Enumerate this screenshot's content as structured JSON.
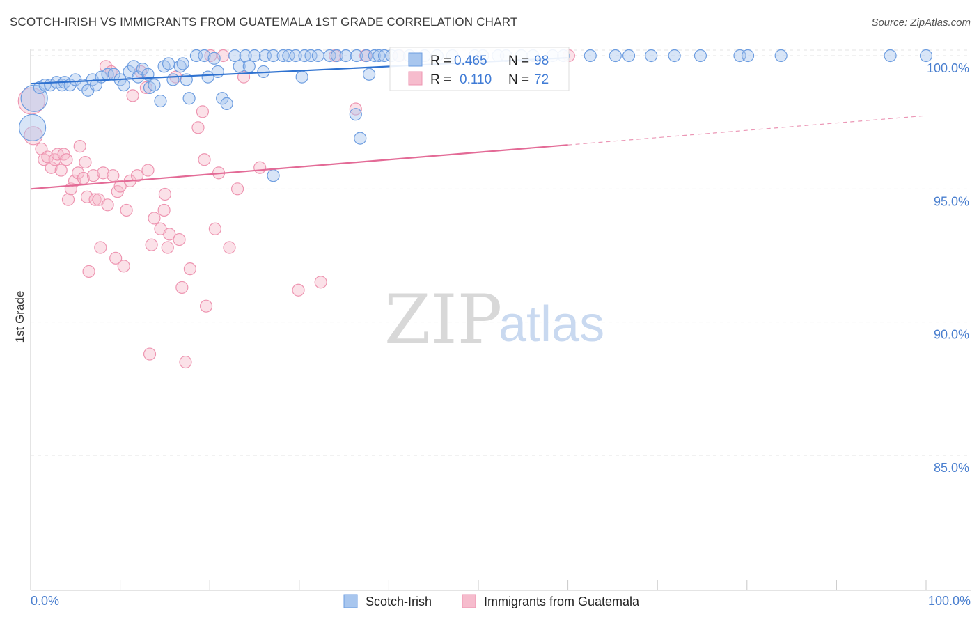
{
  "header": {
    "title": "SCOTCH-IRISH VS IMMIGRANTS FROM GUATEMALA 1ST GRADE CORRELATION CHART",
    "source": "Source: ZipAtlas.com"
  },
  "watermark": {
    "zip": "ZIP",
    "atlas": "atlas"
  },
  "legend_box": {
    "rows": [
      {
        "r_label": "R =",
        "r_value": "0.465",
        "n_label": "N =",
        "n_value": "98"
      },
      {
        "r_label": "R =",
        "r_value": "0.110",
        "n_label": "N =",
        "n_value": "72"
      }
    ]
  },
  "colors": {
    "blue_fill": "#a8c6ee",
    "blue_stroke": "#6d9de0",
    "blue_line": "#2f72d0",
    "pink_fill": "#f6bccd",
    "pink_stroke": "#ee95b1",
    "pink_line": "#e36a96",
    "grid": "#e3e3e3",
    "axis_text": "#4a7fcf"
  },
  "chart_data": {
    "type": "scatter",
    "title": "SCOTCH-IRISH VS IMMIGRANTS FROM GUATEMALA 1ST GRADE CORRELATION CHART",
    "ylabel": "1st Grade",
    "xlabel": "",
    "xlim": [
      0,
      100
    ],
    "ylim": [
      80.5,
      100.8
    ],
    "x_ticks": [
      "0.0%",
      "100.0%"
    ],
    "y_ticks": [
      {
        "value": 85,
        "label": "85.0%"
      },
      {
        "value": 90,
        "label": "90.0%"
      },
      {
        "value": 95,
        "label": "95.0%"
      },
      {
        "value": 100,
        "label": "100.0%"
      }
    ],
    "grid": true,
    "legend_position": "bottom-center",
    "series": [
      {
        "name": "Scotch-Irish",
        "color": "#a8c6ee",
        "R": 0.465,
        "N": 98,
        "trend": {
          "x": [
            0,
            60
          ],
          "y": [
            98.95,
            99.92
          ],
          "dashed_to": null
        },
        "points": [
          {
            "x": 0.2,
            "y": 97.3,
            "s": 3
          },
          {
            "x": 0.4,
            "y": 98.4,
            "s": 3
          },
          {
            "x": 1.0,
            "y": 98.8
          },
          {
            "x": 1.6,
            "y": 98.9
          },
          {
            "x": 2.2,
            "y": 98.9
          },
          {
            "x": 2.9,
            "y": 99.0
          },
          {
            "x": 3.5,
            "y": 98.9
          },
          {
            "x": 3.8,
            "y": 99.0
          },
          {
            "x": 4.4,
            "y": 98.9
          },
          {
            "x": 5.0,
            "y": 99.1
          },
          {
            "x": 5.8,
            "y": 98.9
          },
          {
            "x": 6.4,
            "y": 98.7
          },
          {
            "x": 6.9,
            "y": 99.1
          },
          {
            "x": 7.3,
            "y": 98.9
          },
          {
            "x": 7.9,
            "y": 99.2
          },
          {
            "x": 8.6,
            "y": 99.3
          },
          {
            "x": 9.3,
            "y": 99.3
          },
          {
            "x": 10.0,
            "y": 99.1
          },
          {
            "x": 10.4,
            "y": 98.9
          },
          {
            "x": 11.0,
            "y": 99.4
          },
          {
            "x": 11.5,
            "y": 99.6
          },
          {
            "x": 12.0,
            "y": 99.2
          },
          {
            "x": 12.5,
            "y": 99.5
          },
          {
            "x": 13.1,
            "y": 99.3
          },
          {
            "x": 13.3,
            "y": 98.8
          },
          {
            "x": 13.8,
            "y": 98.9
          },
          {
            "x": 14.5,
            "y": 98.3
          },
          {
            "x": 14.9,
            "y": 99.6
          },
          {
            "x": 15.4,
            "y": 99.7
          },
          {
            "x": 15.9,
            "y": 99.1
          },
          {
            "x": 16.7,
            "y": 99.6
          },
          {
            "x": 17.0,
            "y": 99.7
          },
          {
            "x": 17.4,
            "y": 99.1
          },
          {
            "x": 17.7,
            "y": 98.4
          },
          {
            "x": 18.5,
            "y": 100.0
          },
          {
            "x": 19.4,
            "y": 100.0
          },
          {
            "x": 19.8,
            "y": 99.2
          },
          {
            "x": 20.5,
            "y": 99.9
          },
          {
            "x": 20.9,
            "y": 99.4
          },
          {
            "x": 21.4,
            "y": 98.4
          },
          {
            "x": 21.9,
            "y": 98.2
          },
          {
            "x": 22.8,
            "y": 100.0
          },
          {
            "x": 23.3,
            "y": 99.6
          },
          {
            "x": 24.0,
            "y": 100.0
          },
          {
            "x": 24.4,
            "y": 99.6
          },
          {
            "x": 25.0,
            "y": 100.0
          },
          {
            "x": 26.2,
            "y": 100.0
          },
          {
            "x": 26.0,
            "y": 99.4
          },
          {
            "x": 27.1,
            "y": 100.0
          },
          {
            "x": 28.2,
            "y": 100.0
          },
          {
            "x": 28.8,
            "y": 100.0
          },
          {
            "x": 29.6,
            "y": 100.0
          },
          {
            "x": 30.3,
            "y": 99.2
          },
          {
            "x": 30.6,
            "y": 100.0
          },
          {
            "x": 31.3,
            "y": 100.0
          },
          {
            "x": 32.1,
            "y": 100.0
          },
          {
            "x": 33.4,
            "y": 100.0
          },
          {
            "x": 34.2,
            "y": 100.0
          },
          {
            "x": 35.2,
            "y": 100.0
          },
          {
            "x": 36.4,
            "y": 100.0
          },
          {
            "x": 37.5,
            "y": 100.0
          },
          {
            "x": 37.8,
            "y": 99.3
          },
          {
            "x": 38.4,
            "y": 100.0
          },
          {
            "x": 38.9,
            "y": 100.0
          },
          {
            "x": 39.5,
            "y": 100.0
          },
          {
            "x": 40.3,
            "y": 100.0
          },
          {
            "x": 41.1,
            "y": 100.0
          },
          {
            "x": 42.3,
            "y": 100.0
          },
          {
            "x": 44.0,
            "y": 100.0
          },
          {
            "x": 45.4,
            "y": 100.0
          },
          {
            "x": 47.1,
            "y": 100.0
          },
          {
            "x": 49.6,
            "y": 100.0
          },
          {
            "x": 50.5,
            "y": 100.0
          },
          {
            "x": 52.2,
            "y": 100.0
          },
          {
            "x": 53.1,
            "y": 100.0
          },
          {
            "x": 54.8,
            "y": 100.0
          },
          {
            "x": 56.1,
            "y": 100.0
          },
          {
            "x": 58.3,
            "y": 100.0
          },
          {
            "x": 59.5,
            "y": 100.0
          },
          {
            "x": 62.5,
            "y": 100.0
          },
          {
            "x": 65.3,
            "y": 100.0
          },
          {
            "x": 66.8,
            "y": 100.0
          },
          {
            "x": 69.3,
            "y": 100.0
          },
          {
            "x": 71.9,
            "y": 100.0
          },
          {
            "x": 74.8,
            "y": 100.0
          },
          {
            "x": 79.2,
            "y": 100.0
          },
          {
            "x": 80.1,
            "y": 100.0
          },
          {
            "x": 83.8,
            "y": 100.0
          },
          {
            "x": 96.0,
            "y": 100.0
          },
          {
            "x": 100.0,
            "y": 100.0
          },
          {
            "x": 36.3,
            "y": 97.8
          },
          {
            "x": 36.8,
            "y": 96.9
          },
          {
            "x": 27.1,
            "y": 95.5
          }
        ]
      },
      {
        "name": "Immigrants from Guatemala",
        "color": "#f6bccd",
        "R": 0.11,
        "N": 72,
        "trend": {
          "x": [
            0,
            60
          ],
          "y": [
            95.0,
            96.65
          ],
          "dashed_to": [
            100,
            97.75
          ]
        },
        "points": [
          {
            "x": 0.1,
            "y": 98.3,
            "s": 3
          },
          {
            "x": 0.3,
            "y": 97.0,
            "s": 2
          },
          {
            "x": 1.2,
            "y": 96.5
          },
          {
            "x": 1.5,
            "y": 96.1
          },
          {
            "x": 1.9,
            "y": 96.2
          },
          {
            "x": 2.3,
            "y": 95.8
          },
          {
            "x": 2.7,
            "y": 96.1
          },
          {
            "x": 3.0,
            "y": 96.3
          },
          {
            "x": 3.4,
            "y": 95.7
          },
          {
            "x": 3.7,
            "y": 96.3
          },
          {
            "x": 4.0,
            "y": 96.1
          },
          {
            "x": 4.2,
            "y": 94.6
          },
          {
            "x": 4.5,
            "y": 95.0
          },
          {
            "x": 4.9,
            "y": 95.3
          },
          {
            "x": 5.3,
            "y": 95.6
          },
          {
            "x": 5.5,
            "y": 96.6
          },
          {
            "x": 5.9,
            "y": 95.4
          },
          {
            "x": 6.1,
            "y": 96.0
          },
          {
            "x": 6.3,
            "y": 94.7
          },
          {
            "x": 6.5,
            "y": 91.9
          },
          {
            "x": 7.0,
            "y": 95.5
          },
          {
            "x": 7.2,
            "y": 94.6
          },
          {
            "x": 7.6,
            "y": 94.6
          },
          {
            "x": 7.8,
            "y": 92.8
          },
          {
            "x": 8.1,
            "y": 95.6
          },
          {
            "x": 8.4,
            "y": 99.6
          },
          {
            "x": 8.6,
            "y": 94.4
          },
          {
            "x": 9.0,
            "y": 99.4
          },
          {
            "x": 9.2,
            "y": 95.5
          },
          {
            "x": 9.5,
            "y": 92.4
          },
          {
            "x": 9.7,
            "y": 94.9
          },
          {
            "x": 10.0,
            "y": 95.1
          },
          {
            "x": 10.4,
            "y": 92.1
          },
          {
            "x": 10.7,
            "y": 94.2
          },
          {
            "x": 11.1,
            "y": 95.3
          },
          {
            "x": 11.4,
            "y": 98.5
          },
          {
            "x": 11.9,
            "y": 95.5
          },
          {
            "x": 12.3,
            "y": 99.4
          },
          {
            "x": 12.9,
            "y": 98.8
          },
          {
            "x": 13.1,
            "y": 95.7
          },
          {
            "x": 13.5,
            "y": 92.9
          },
          {
            "x": 13.8,
            "y": 93.9
          },
          {
            "x": 13.3,
            "y": 88.8
          },
          {
            "x": 14.5,
            "y": 93.5
          },
          {
            "x": 14.9,
            "y": 94.2
          },
          {
            "x": 15.0,
            "y": 94.8
          },
          {
            "x": 15.3,
            "y": 92.8
          },
          {
            "x": 15.5,
            "y": 93.3
          },
          {
            "x": 16.2,
            "y": 99.2
          },
          {
            "x": 16.6,
            "y": 93.1
          },
          {
            "x": 16.9,
            "y": 91.3
          },
          {
            "x": 17.3,
            "y": 88.5
          },
          {
            "x": 17.8,
            "y": 92.0
          },
          {
            "x": 18.7,
            "y": 97.3
          },
          {
            "x": 19.2,
            "y": 97.9
          },
          {
            "x": 19.4,
            "y": 96.1
          },
          {
            "x": 19.6,
            "y": 90.6
          },
          {
            "x": 20.1,
            "y": 100.0
          },
          {
            "x": 20.6,
            "y": 93.5
          },
          {
            "x": 21.0,
            "y": 95.6
          },
          {
            "x": 21.5,
            "y": 100.0
          },
          {
            "x": 22.2,
            "y": 92.8
          },
          {
            "x": 23.1,
            "y": 95.0
          },
          {
            "x": 23.8,
            "y": 99.2
          },
          {
            "x": 25.6,
            "y": 95.8
          },
          {
            "x": 29.9,
            "y": 91.2
          },
          {
            "x": 32.4,
            "y": 91.5
          },
          {
            "x": 34.0,
            "y": 100.0
          },
          {
            "x": 36.3,
            "y": 98.0
          },
          {
            "x": 37.4,
            "y": 100.0
          },
          {
            "x": 41.2,
            "y": 100.0
          },
          {
            "x": 60.1,
            "y": 100.0
          }
        ]
      }
    ]
  }
}
